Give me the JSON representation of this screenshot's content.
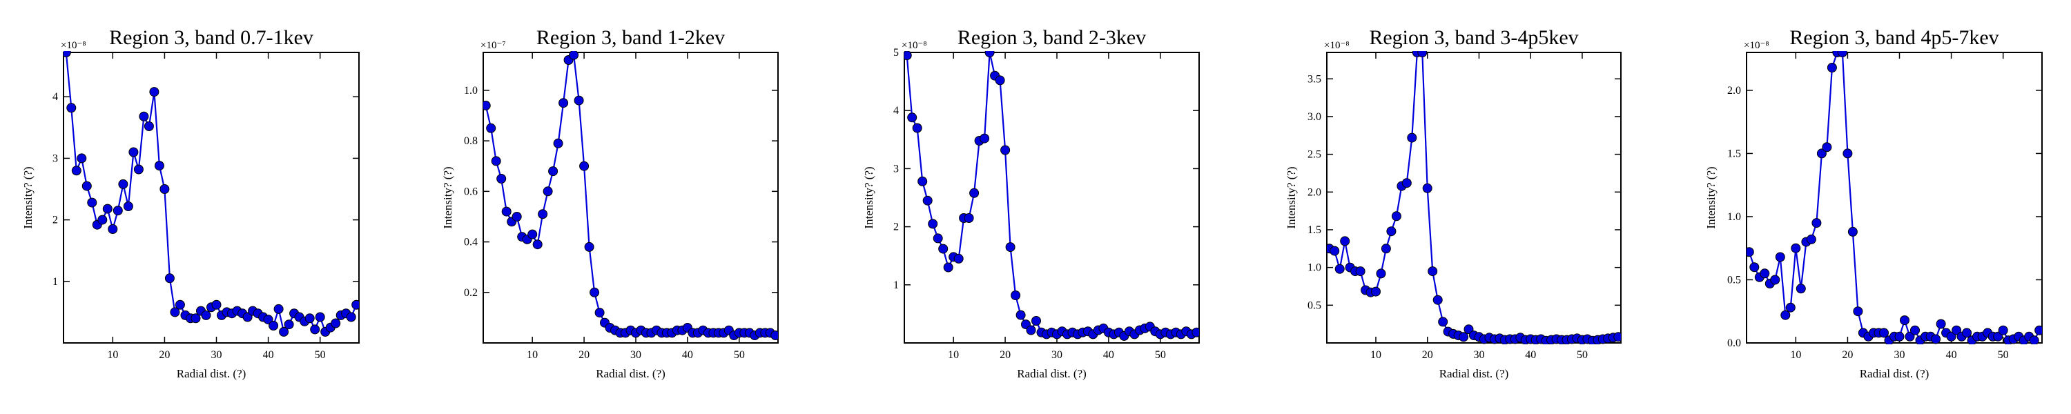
{
  "figure": {
    "background": "#ffffff",
    "series_color": "#0000dd"
  },
  "chart_data": [
    {
      "type": "line",
      "title": "Region 3, band 0.7-1kev",
      "xlabel": "Radial dist. (?)",
      "ylabel": "Intensity? (?)",
      "y_scale_text": "×10⁻⁸",
      "xlim": [
        0.5,
        57.5
      ],
      "ylim": [
        0.0,
        4.72
      ],
      "xticks": [
        10,
        20,
        30,
        40,
        50
      ],
      "yticks": [
        1,
        2,
        3,
        4
      ],
      "ytick_labels": [
        "1",
        "2",
        "3",
        "4"
      ],
      "markers": "circle",
      "grid": false,
      "legend": "none",
      "x": [
        1,
        2,
        3,
        4,
        5,
        6,
        7,
        8,
        9,
        10,
        11,
        12,
        13,
        14,
        15,
        16,
        17,
        18,
        19,
        20,
        21,
        22,
        23,
        24,
        25,
        26,
        27,
        28,
        29,
        30,
        31,
        32,
        33,
        34,
        35,
        36,
        37,
        38,
        39,
        40,
        41,
        42,
        43,
        44,
        45,
        46,
        47,
        48,
        49,
        50,
        51,
        52,
        53,
        54,
        55,
        56,
        57
      ],
      "y": [
        4.72,
        3.82,
        2.8,
        3.0,
        2.55,
        2.28,
        1.92,
        2.0,
        2.18,
        1.85,
        2.15,
        2.58,
        2.22,
        3.1,
        2.82,
        3.68,
        3.52,
        4.08,
        2.88,
        2.5,
        1.05,
        0.5,
        0.62,
        0.45,
        0.4,
        0.4,
        0.52,
        0.45,
        0.58,
        0.62,
        0.45,
        0.5,
        0.48,
        0.52,
        0.48,
        0.42,
        0.52,
        0.48,
        0.42,
        0.38,
        0.28,
        0.55,
        0.18,
        0.3,
        0.48,
        0.42,
        0.35,
        0.4,
        0.22,
        0.42,
        0.18,
        0.25,
        0.32,
        0.45,
        0.48,
        0.42,
        0.62
      ]
    },
    {
      "type": "line",
      "title": "Region 3, band 1-2kev",
      "xlabel": "Radial dist. (?)",
      "ylabel": "Intensity? (?)",
      "y_scale_text": "×10⁻⁷",
      "xlim": [
        0.5,
        57.5
      ],
      "ylim": [
        0.0,
        1.15
      ],
      "xticks": [
        10,
        20,
        30,
        40,
        50
      ],
      "yticks": [
        0.2,
        0.4,
        0.6,
        0.8,
        1.0
      ],
      "ytick_labels": [
        "0.2",
        "0.4",
        "0.6",
        "0.8",
        "1.0"
      ],
      "markers": "circle",
      "grid": false,
      "legend": "none",
      "x": [
        1,
        2,
        3,
        4,
        5,
        6,
        7,
        8,
        9,
        10,
        11,
        12,
        13,
        14,
        15,
        16,
        17,
        18,
        19,
        20,
        21,
        22,
        23,
        24,
        25,
        26,
        27,
        28,
        29,
        30,
        31,
        32,
        33,
        34,
        35,
        36,
        37,
        38,
        39,
        40,
        41,
        42,
        43,
        44,
        45,
        46,
        47,
        48,
        49,
        50,
        51,
        52,
        53,
        54,
        55,
        56,
        57
      ],
      "y": [
        0.94,
        0.85,
        0.72,
        0.65,
        0.52,
        0.48,
        0.5,
        0.42,
        0.41,
        0.43,
        0.39,
        0.51,
        0.6,
        0.68,
        0.79,
        0.95,
        1.12,
        1.14,
        0.96,
        0.7,
        0.38,
        0.2,
        0.12,
        0.08,
        0.06,
        0.05,
        0.04,
        0.04,
        0.05,
        0.04,
        0.05,
        0.04,
        0.04,
        0.05,
        0.04,
        0.04,
        0.04,
        0.05,
        0.05,
        0.06,
        0.04,
        0.04,
        0.05,
        0.04,
        0.04,
        0.04,
        0.04,
        0.05,
        0.03,
        0.04,
        0.04,
        0.04,
        0.03,
        0.04,
        0.04,
        0.04,
        0.03
      ]
    },
    {
      "type": "line",
      "title": "Region 3, band 2-3kev",
      "xlabel": "Radial dist. (?)",
      "ylabel": "Intensity? (?)",
      "y_scale_text": "×10⁻⁸",
      "xlim": [
        0.5,
        57.5
      ],
      "ylim": [
        0.0,
        5.0
      ],
      "xticks": [
        10,
        20,
        30,
        40,
        50
      ],
      "yticks": [
        1,
        2,
        3,
        4,
        5
      ],
      "ytick_labels": [
        "1",
        "2",
        "3",
        "4",
        "5"
      ],
      "markers": "circle",
      "grid": false,
      "legend": "none",
      "x": [
        1,
        2,
        3,
        4,
        5,
        6,
        7,
        8,
        9,
        10,
        11,
        12,
        13,
        14,
        15,
        16,
        17,
        18,
        19,
        20,
        21,
        22,
        23,
        24,
        25,
        26,
        27,
        28,
        29,
        30,
        31,
        32,
        33,
        34,
        35,
        36,
        37,
        38,
        39,
        40,
        41,
        42,
        43,
        44,
        45,
        46,
        47,
        48,
        49,
        50,
        51,
        52,
        53,
        54,
        55,
        56,
        57
      ],
      "y": [
        4.95,
        3.88,
        3.7,
        2.78,
        2.45,
        2.05,
        1.8,
        1.62,
        1.3,
        1.48,
        1.45,
        2.15,
        2.15,
        2.58,
        3.48,
        3.52,
        5.0,
        4.6,
        4.52,
        3.32,
        1.65,
        0.82,
        0.48,
        0.32,
        0.22,
        0.38,
        0.18,
        0.15,
        0.18,
        0.15,
        0.2,
        0.15,
        0.18,
        0.15,
        0.18,
        0.2,
        0.15,
        0.22,
        0.25,
        0.18,
        0.15,
        0.18,
        0.12,
        0.2,
        0.15,
        0.22,
        0.25,
        0.28,
        0.2,
        0.15,
        0.18,
        0.15,
        0.18,
        0.15,
        0.2,
        0.15,
        0.18
      ]
    },
    {
      "type": "line",
      "title": "Region 3, band 3-4p5kev",
      "xlabel": "Radial dist. (?)",
      "ylabel": "Intensity? (?)",
      "y_scale_text": "×10⁻⁸",
      "xlim": [
        0.5,
        57.5
      ],
      "ylim": [
        0.0,
        3.85
      ],
      "xticks": [
        10,
        20,
        30,
        40,
        50
      ],
      "yticks": [
        0.5,
        1.0,
        1.5,
        2.0,
        2.5,
        3.0,
        3.5
      ],
      "ytick_labels": [
        "0.5",
        "1.0",
        "1.5",
        "2.0",
        "2.5",
        "3.0",
        "3.5"
      ],
      "markers": "circle",
      "grid": false,
      "legend": "none",
      "x": [
        1,
        2,
        3,
        4,
        5,
        6,
        7,
        8,
        9,
        10,
        11,
        12,
        13,
        14,
        15,
        16,
        17,
        18,
        19,
        20,
        21,
        22,
        23,
        24,
        25,
        26,
        27,
        28,
        29,
        30,
        31,
        32,
        33,
        34,
        35,
        36,
        37,
        38,
        39,
        40,
        41,
        42,
        43,
        44,
        45,
        46,
        47,
        48,
        49,
        50,
        51,
        52,
        53,
        54,
        55,
        56,
        57
      ],
      "y": [
        1.25,
        1.22,
        0.98,
        1.35,
        1.0,
        0.95,
        0.95,
        0.7,
        0.67,
        0.68,
        0.92,
        1.25,
        1.48,
        1.68,
        2.08,
        2.12,
        2.72,
        3.85,
        3.85,
        2.05,
        0.95,
        0.57,
        0.28,
        0.15,
        0.12,
        0.1,
        0.08,
        0.18,
        0.1,
        0.08,
        0.05,
        0.07,
        0.05,
        0.06,
        0.04,
        0.05,
        0.05,
        0.07,
        0.04,
        0.05,
        0.04,
        0.05,
        0.03,
        0.04,
        0.05,
        0.04,
        0.04,
        0.05,
        0.06,
        0.04,
        0.05,
        0.03,
        0.04,
        0.05,
        0.06,
        0.07,
        0.08
      ]
    },
    {
      "type": "line",
      "title": "Region 3, band 4p5-7kev",
      "xlabel": "Radial dist. (?)",
      "ylabel": "Intensity? (?)",
      "y_scale_text": "×10⁻⁸",
      "xlim": [
        0.5,
        57.5
      ],
      "ylim": [
        0.0,
        2.3
      ],
      "xticks": [
        10,
        20,
        30,
        40,
        50
      ],
      "yticks": [
        0.0,
        0.5,
        1.0,
        1.5,
        2.0
      ],
      "ytick_labels": [
        "0.0",
        "0.5",
        "1.0",
        "1.5",
        "2.0"
      ],
      "markers": "circle",
      "grid": false,
      "legend": "none",
      "x": [
        1,
        2,
        3,
        4,
        5,
        6,
        7,
        8,
        9,
        10,
        11,
        12,
        13,
        14,
        15,
        16,
        17,
        18,
        19,
        20,
        21,
        22,
        23,
        24,
        25,
        26,
        27,
        28,
        29,
        30,
        31,
        32,
        33,
        34,
        35,
        36,
        37,
        38,
        39,
        40,
        41,
        42,
        43,
        44,
        45,
        46,
        47,
        48,
        49,
        50,
        51,
        52,
        53,
        54,
        55,
        56,
        57
      ],
      "y": [
        0.72,
        0.6,
        0.52,
        0.55,
        0.47,
        0.5,
        0.68,
        0.22,
        0.28,
        0.75,
        0.43,
        0.8,
        0.82,
        0.95,
        1.5,
        1.55,
        2.18,
        2.3,
        2.3,
        1.5,
        0.88,
        0.25,
        0.08,
        0.05,
        0.08,
        0.08,
        0.08,
        0.02,
        0.05,
        0.05,
        0.18,
        0.05,
        0.1,
        0.02,
        0.05,
        0.05,
        0.03,
        0.15,
        0.08,
        0.05,
        0.1,
        0.05,
        0.08,
        0.02,
        0.05,
        0.05,
        0.08,
        0.05,
        0.05,
        0.1,
        0.02,
        0.03,
        0.05,
        0.02,
        0.05,
        0.02,
        0.1
      ]
    }
  ]
}
